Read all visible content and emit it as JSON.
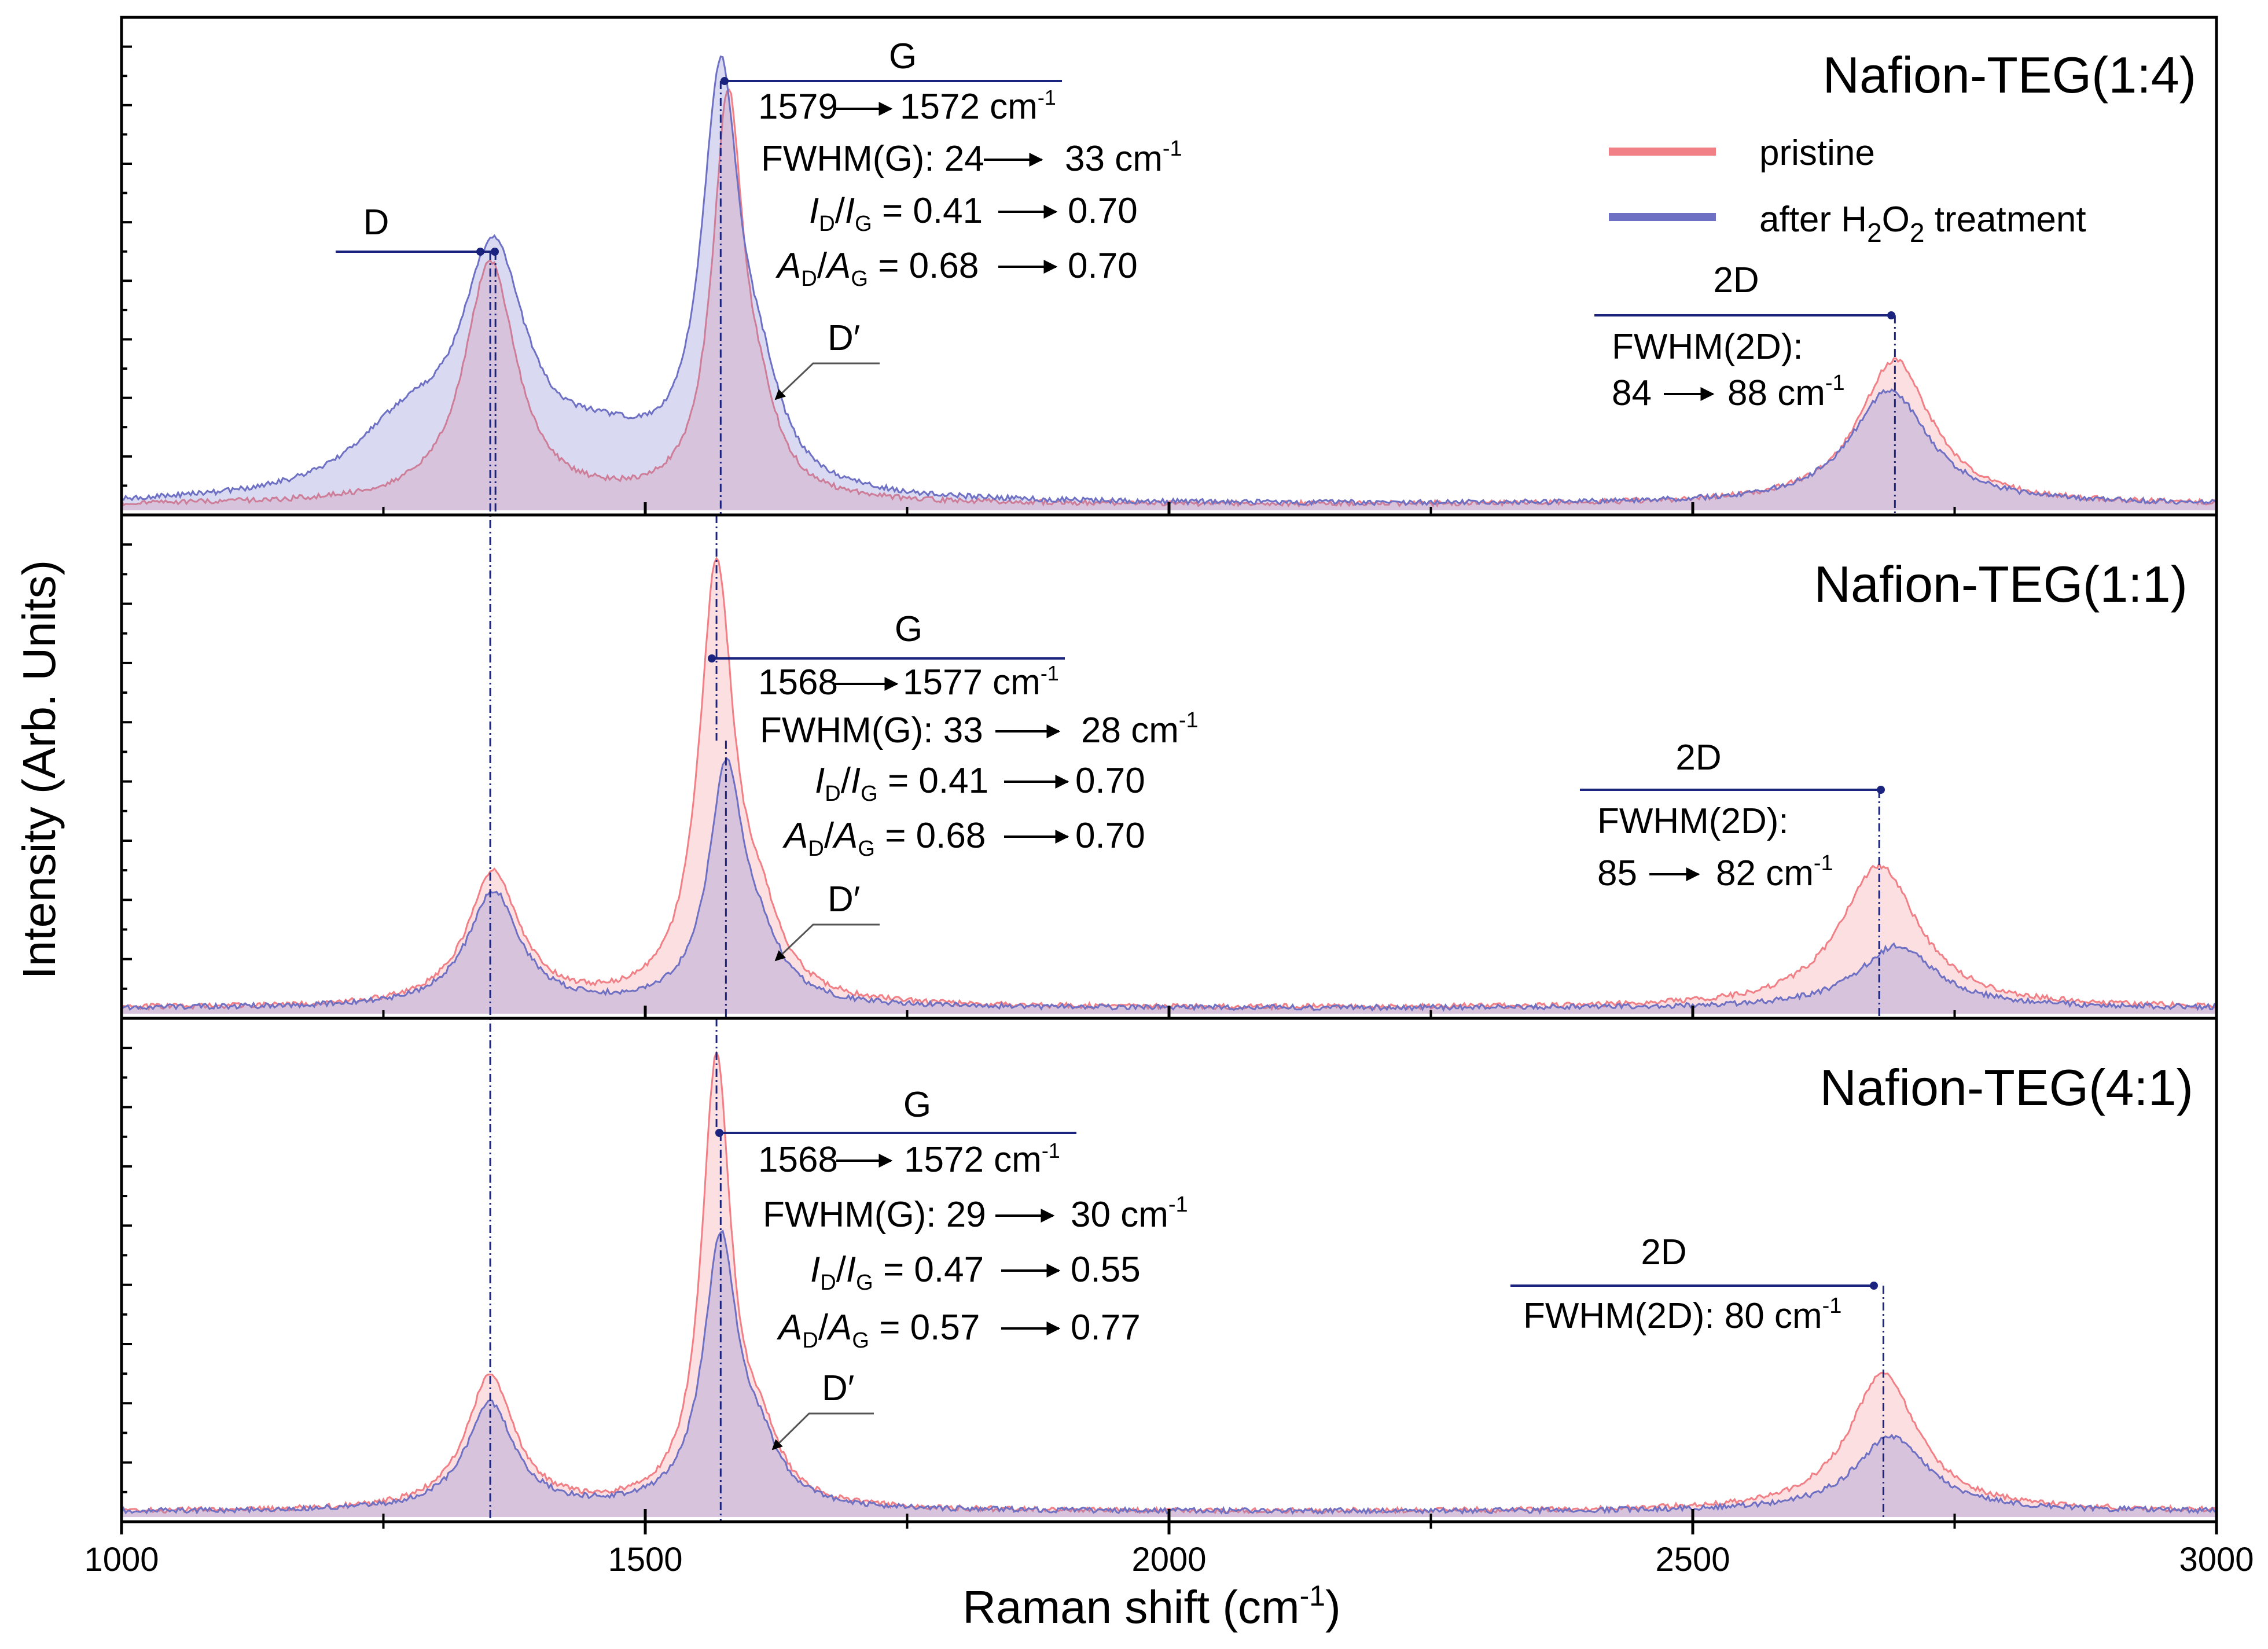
{
  "chart_data": {
    "type": "line",
    "xlabel": "Raman shift (cm-1)",
    "xlabel_main": "Raman shift (cm",
    "xlabel_sup": "-1",
    "xlabel_close": ")",
    "ylabel": "Intensity (Arb. Units)",
    "xlim": [
      1000,
      3000
    ],
    "xticks": [
      1000,
      1500,
      2000,
      2500,
      3000
    ],
    "legend": {
      "position": "top-right",
      "entries": [
        {
          "name": "pristine",
          "color": "#f07f86"
        },
        {
          "name": "after H2O2 treatment",
          "main": "after H",
          "sub1": "2",
          "mid": "O",
          "sub2": "2",
          "tail": " treatment",
          "color": "#6e70c4"
        }
      ]
    },
    "panels": [
      {
        "title": "Nafion-TEG(1:4)",
        "series": [
          {
            "name": "pristine",
            "peaks": [
              [
                1352,
                0.55,
                30
              ],
              [
                1579,
                0.9,
                18
              ],
              [
                1610,
                0.12,
                22
              ],
              [
                2693,
                0.33,
                42
              ]
            ]
          },
          {
            "name": "after H2O2 treatment",
            "peaks": [
              [
                1355,
                0.52,
                38
              ],
              [
                1270,
                0.14,
                60
              ],
              [
                1460,
                0.1,
                70
              ],
              [
                1572,
                0.92,
                22
              ],
              [
                1610,
                0.16,
                25
              ],
              [
                2688,
                0.26,
                45
              ]
            ]
          }
        ],
        "annotations": {
          "D": "D",
          "G": "G",
          "G_shift": [
            "1579",
            "1572 cm",
            "-1"
          ],
          "fwhm_g": [
            "FWHM(G): 24",
            "33 cm",
            "-1"
          ],
          "id_ig": [
            "0.41",
            "0.70"
          ],
          "ad_ag": [
            "0.68",
            "0.70"
          ],
          "D_prime": "D′",
          "two_d": "2D",
          "fwhm_2d_label": "FWHM(2D):",
          "fwhm_2d": [
            "84",
            "88 cm",
            "-1"
          ]
        }
      },
      {
        "title": "Nafion-TEG(1:1)",
        "series": [
          {
            "name": "pristine",
            "peaks": [
              [
                1355,
                0.3,
                30
              ],
              [
                1568,
                0.97,
                20
              ],
              [
                1610,
                0.14,
                25
              ],
              [
                2678,
                0.32,
                45
              ]
            ]
          },
          {
            "name": "after H2O2 treatment",
            "peaks": [
              [
                1355,
                0.26,
                30
              ],
              [
                1577,
                0.52,
                20
              ],
              [
                1610,
                0.1,
                25
              ],
              [
                2695,
                0.14,
                45
              ]
            ]
          }
        ],
        "annotations": {
          "G": "G",
          "G_shift": [
            "1568",
            "1577 cm",
            "-1"
          ],
          "fwhm_g": [
            "FWHM(G): 33",
            "28 cm",
            "-1"
          ],
          "id_ig": [
            "0.41",
            "0.70"
          ],
          "ad_ag": [
            "0.68",
            "0.70"
          ],
          "D_prime": "D′",
          "two_d": "2D",
          "fwhm_2d_label": "FWHM(2D):",
          "fwhm_2d": [
            "85",
            "82 cm",
            "-1"
          ]
        }
      },
      {
        "title": "Nafion-TEG(4:1)",
        "series": [
          {
            "name": "pristine",
            "peaks": [
              [
                1352,
                0.3,
                28
              ],
              [
                1568,
                1.0,
                17
              ],
              [
                1610,
                0.12,
                22
              ],
              [
                2682,
                0.31,
                40
              ]
            ]
          },
          {
            "name": "after H2O2 treatment",
            "peaks": [
              [
                1352,
                0.24,
                28
              ],
              [
                1572,
                0.6,
                20
              ],
              [
                1610,
                0.1,
                22
              ],
              [
                2690,
                0.17,
                42
              ]
            ]
          }
        ],
        "annotations": {
          "G": "G",
          "G_shift": [
            "1568",
            "1572 cm",
            "-1"
          ],
          "fwhm_g": [
            "FWHM(G): 29",
            "30 cm",
            "-1"
          ],
          "id_ig": [
            "0.47",
            "0.55"
          ],
          "ad_ag": [
            "0.57",
            "0.77"
          ],
          "D_prime": "D′",
          "two_d": "2D",
          "fwhm_2d_full": [
            "FWHM(2D): 80 cm",
            "-1"
          ]
        }
      }
    ]
  }
}
